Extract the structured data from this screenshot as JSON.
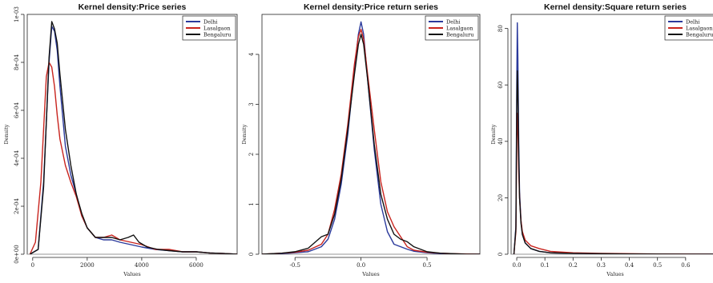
{
  "chart_data": [
    {
      "type": "line",
      "title": "Kernel density:Price series",
      "xlabel": "Values",
      "ylabel": "Density",
      "xlim": [
        -200,
        7500
      ],
      "ylim": [
        0,
        0.001
      ],
      "xticks": [
        0,
        2000,
        4000,
        6000
      ],
      "xtick_labels": [
        "0",
        "2000",
        "4000",
        "6000"
      ],
      "yticks": [
        0,
        0.0002,
        0.0004,
        0.0006,
        0.0008,
        0.001
      ],
      "ytick_labels": [
        "0e+00",
        "2e-04",
        "4e-04",
        "6e-04",
        "8e-04",
        "1e-03"
      ],
      "legend_position": "top-right",
      "series": [
        {
          "name": "Delhi",
          "color": "#2b3a9c",
          "x": [
            -100,
            200,
            400,
            600,
            700,
            800,
            900,
            1000,
            1200,
            1400,
            1600,
            1800,
            2000,
            2300,
            2600,
            2900,
            3200,
            3600,
            4000,
            4500,
            5000,
            5500,
            6000,
            6500,
            7000,
            7500
          ],
          "y": [
            0,
            2e-05,
            0.0003,
            0.0008,
            0.00095,
            0.00093,
            0.00085,
            0.0007,
            0.00045,
            0.00033,
            0.00025,
            0.00016,
            0.00011,
            7e-05,
            6e-05,
            6e-05,
            5e-05,
            4e-05,
            3e-05,
            2e-05,
            1.5e-05,
            1e-05,
            1e-05,
            5e-06,
            3e-06,
            0
          ]
        },
        {
          "name": "Lasalgaon",
          "color": "#c8241e",
          "x": [
            -100,
            100,
            300,
            500,
            600,
            700,
            800,
            900,
            1000,
            1200,
            1400,
            1600,
            1800,
            2000,
            2300,
            2600,
            2900,
            3200,
            3600,
            4000,
            4500,
            5000,
            5500,
            6000,
            6500,
            7000,
            7500
          ],
          "y": [
            0,
            5e-05,
            0.0003,
            0.00074,
            0.0008,
            0.00078,
            0.0007,
            0.00058,
            0.00048,
            0.00037,
            0.0003,
            0.00024,
            0.00016,
            0.00011,
            7e-05,
            7e-05,
            8e-05,
            6e-05,
            5e-05,
            4e-05,
            2e-05,
            2e-05,
            1e-05,
            1e-05,
            5e-06,
            3e-06,
            0
          ]
        },
        {
          "name": "Bengaluru",
          "color": "#111111",
          "x": [
            -100,
            200,
            400,
            600,
            700,
            800,
            900,
            1000,
            1200,
            1400,
            1600,
            1800,
            2000,
            2300,
            2600,
            2900,
            3200,
            3500,
            3700,
            3900,
            4200,
            4600,
            5000,
            5500,
            6000,
            6500,
            7000,
            7500
          ],
          "y": [
            0,
            2e-05,
            0.00028,
            0.00082,
            0.00097,
            0.00094,
            0.00088,
            0.00075,
            0.00052,
            0.00037,
            0.00025,
            0.00017,
            0.00011,
            7e-05,
            7e-05,
            7e-05,
            6e-05,
            7e-05,
            8e-05,
            5e-05,
            3e-05,
            2e-05,
            1.5e-05,
            1e-05,
            1e-05,
            5e-06,
            3e-06,
            0
          ]
        }
      ]
    },
    {
      "type": "line",
      "title": "Kernel density:Price return series",
      "xlabel": "Values",
      "ylabel": "Density",
      "xlim": [
        -0.75,
        0.9
      ],
      "ylim": [
        0,
        4.8
      ],
      "xticks": [
        -0.5,
        0,
        0.5
      ],
      "xtick_labels": [
        "-0.5",
        "0.0",
        "0.5"
      ],
      "yticks": [
        0,
        1,
        2,
        3,
        4
      ],
      "ytick_labels": [
        "0",
        "1",
        "2",
        "3",
        "4"
      ],
      "legend_position": "top-right",
      "series": [
        {
          "name": "Delhi",
          "color": "#2b3a9c",
          "x": [
            -0.75,
            -0.6,
            -0.5,
            -0.4,
            -0.3,
            -0.25,
            -0.2,
            -0.15,
            -0.1,
            -0.05,
            -0.02,
            0,
            0.02,
            0.05,
            0.1,
            0.15,
            0.2,
            0.25,
            0.3,
            0.35,
            0.4,
            0.5,
            0.6,
            0.7,
            0.8,
            0.9
          ],
          "y": [
            0,
            0.01,
            0.03,
            0.05,
            0.15,
            0.3,
            0.7,
            1.4,
            2.4,
            3.7,
            4.4,
            4.65,
            4.4,
            3.5,
            2.1,
            1.0,
            0.45,
            0.2,
            0.15,
            0.1,
            0.06,
            0.03,
            0.01,
            0.005,
            0,
            0
          ]
        },
        {
          "name": "Lasalgaon",
          "color": "#c8241e",
          "x": [
            -0.75,
            -0.6,
            -0.5,
            -0.4,
            -0.3,
            -0.25,
            -0.2,
            -0.15,
            -0.1,
            -0.05,
            -0.02,
            0,
            0.02,
            0.05,
            0.1,
            0.15,
            0.2,
            0.25,
            0.3,
            0.35,
            0.4,
            0.5,
            0.6,
            0.7,
            0.8,
            0.9
          ],
          "y": [
            0,
            0.02,
            0.04,
            0.08,
            0.2,
            0.4,
            0.9,
            1.6,
            2.6,
            3.8,
            4.35,
            4.5,
            4.3,
            3.6,
            2.5,
            1.45,
            0.85,
            0.55,
            0.35,
            0.15,
            0.08,
            0.04,
            0.02,
            0.01,
            0.005,
            0
          ]
        },
        {
          "name": "Bengaluru",
          "color": "#111111",
          "x": [
            -0.75,
            -0.6,
            -0.5,
            -0.4,
            -0.3,
            -0.25,
            -0.2,
            -0.15,
            -0.1,
            -0.05,
            -0.02,
            0,
            0.02,
            0.05,
            0.1,
            0.15,
            0.2,
            0.25,
            0.3,
            0.35,
            0.4,
            0.5,
            0.6,
            0.7,
            0.8,
            0.9
          ],
          "y": [
            0,
            0.02,
            0.05,
            0.12,
            0.35,
            0.4,
            0.8,
            1.5,
            2.5,
            3.6,
            4.2,
            4.4,
            4.2,
            3.5,
            2.2,
            1.2,
            0.7,
            0.4,
            0.3,
            0.25,
            0.15,
            0.05,
            0.02,
            0.01,
            0,
            0
          ]
        }
      ]
    },
    {
      "type": "line",
      "title": "Kernel density:Square return series",
      "xlabel": "Values",
      "ylabel": "Density",
      "xlim": [
        -0.02,
        0.72
      ],
      "ylim": [
        0,
        85
      ],
      "xticks": [
        0,
        0.1,
        0.2,
        0.3,
        0.4,
        0.5,
        0.6
      ],
      "xtick_labels": [
        "0.0",
        "0.1",
        "0.2",
        "0.3",
        "0.4",
        "0.5",
        "0.6"
      ],
      "yticks": [
        0,
        20,
        40,
        60,
        80
      ],
      "ytick_labels": [
        "0",
        "20",
        "40",
        "60",
        "80"
      ],
      "legend_position": "top-right",
      "series": [
        {
          "name": "Delhi",
          "color": "#2b3a9c",
          "x": [
            -0.01,
            -0.003,
            0,
            0.002,
            0.004,
            0.007,
            0.01,
            0.015,
            0.02,
            0.03,
            0.05,
            0.08,
            0.12,
            0.2,
            0.3,
            0.4,
            0.5,
            0.6,
            0.7
          ],
          "y": [
            0,
            10,
            60,
            82,
            70,
            40,
            22,
            12,
            7,
            4,
            2,
            1,
            0.5,
            0.3,
            0.2,
            0.1,
            0.05,
            0.02,
            0
          ]
        },
        {
          "name": "Lasalgaon",
          "color": "#c8241e",
          "x": [
            -0.01,
            -0.003,
            0,
            0.002,
            0.004,
            0.007,
            0.01,
            0.015,
            0.02,
            0.03,
            0.05,
            0.08,
            0.12,
            0.2,
            0.3,
            0.4,
            0.5,
            0.6,
            0.7
          ],
          "y": [
            0,
            8,
            40,
            50,
            45,
            30,
            20,
            12,
            8,
            5,
            3,
            2,
            1,
            0.5,
            0.3,
            0.2,
            0.1,
            0.05,
            0
          ]
        },
        {
          "name": "Bengaluru",
          "color": "#111111",
          "x": [
            -0.01,
            -0.003,
            0,
            0.002,
            0.004,
            0.007,
            0.01,
            0.015,
            0.02,
            0.03,
            0.05,
            0.08,
            0.12,
            0.2,
            0.3,
            0.4,
            0.5,
            0.6,
            0.7
          ],
          "y": [
            0,
            9,
            52,
            65,
            58,
            35,
            20,
            11,
            7,
            4,
            2,
            1,
            0.5,
            0.3,
            0.2,
            0.1,
            0.05,
            0.02,
            0
          ]
        }
      ]
    }
  ]
}
